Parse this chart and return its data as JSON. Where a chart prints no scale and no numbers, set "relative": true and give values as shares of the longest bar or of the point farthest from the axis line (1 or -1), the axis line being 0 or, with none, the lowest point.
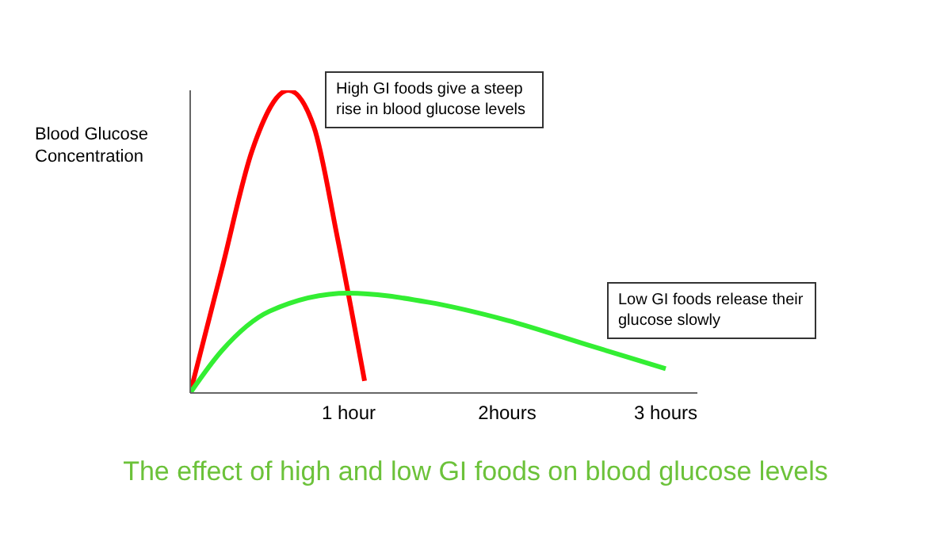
{
  "chart_data": {
    "type": "line",
    "title": "The effect of high and low GI foods on blood glucose levels",
    "ylabel": "Blood Glucose Concentration",
    "relative": true,
    "xlim": [
      0,
      3.2
    ],
    "xticks": [
      {
        "value": 1,
        "label": "1 hour"
      },
      {
        "value": 2,
        "label": "2hours"
      },
      {
        "value": 3,
        "label": "3 hours"
      }
    ],
    "grid": false,
    "legend": false,
    "marker": "none",
    "annotations": [
      "High GI foods give a steep rise in blood glucose levels",
      "Low GI foods release their glucose slowly"
    ],
    "series": [
      {
        "color": "#ff0000",
        "x": [
          0,
          0.2,
          0.39,
          0.62,
          0.78,
          0.93,
          1.1
        ],
        "values": [
          0,
          0.41,
          0.8,
          1,
          0.88,
          0.51,
          0.04
        ]
      },
      {
        "color": "#33ee33",
        "x": [
          0,
          0.2,
          0.5,
          1,
          1.5,
          2,
          2.5,
          3
        ],
        "values": [
          0,
          0.14,
          0.27,
          0.33,
          0.3,
          0.24,
          0.16,
          0.08
        ]
      }
    ]
  }
}
